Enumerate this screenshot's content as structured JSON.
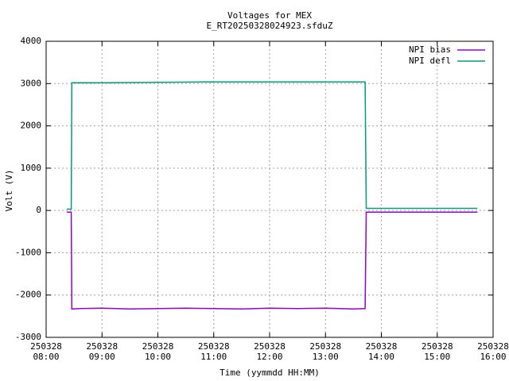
{
  "chart_data": {
    "type": "line",
    "title": "Voltages for MEX",
    "subtitle": "E_RT20250328024923.sfduZ",
    "x_label": "Time (yymmdd HH:MM)",
    "y_label": "Volt (V)",
    "xlim": [
      8,
      16
    ],
    "xticks": [
      {
        "value": 8,
        "label": [
          "250328",
          "08:00"
        ]
      },
      {
        "value": 9,
        "label": [
          "250328",
          "09:00"
        ]
      },
      {
        "value": 10,
        "label": [
          "250328",
          "10:00"
        ]
      },
      {
        "value": 11,
        "label": [
          "250328",
          "11:00"
        ]
      },
      {
        "value": 12,
        "label": [
          "250328",
          "12:00"
        ]
      },
      {
        "value": 13,
        "label": [
          "250328",
          "13:00"
        ]
      },
      {
        "value": 14,
        "label": [
          "250328",
          "14:00"
        ]
      },
      {
        "value": 15,
        "label": [
          "250328",
          "15:00"
        ]
      },
      {
        "value": 16,
        "label": [
          "250328",
          "16:00"
        ]
      }
    ],
    "ylim": [
      -3000,
      4000
    ],
    "yticks": [
      -3000,
      -2000,
      -1000,
      0,
      1000,
      2000,
      3000,
      4000
    ],
    "grid": true,
    "legend": "top-right",
    "series": [
      {
        "name": "NPI bias",
        "color": "#9400d3",
        "x": [
          8.37,
          8.45,
          8.46,
          8.6,
          9,
          9.5,
          10,
          10.5,
          11,
          11.5,
          12,
          12.5,
          13,
          13.5,
          13.71,
          13.73,
          15.72
        ],
        "values": [
          -40,
          -40,
          -2330,
          -2320,
          -2310,
          -2330,
          -2320,
          -2310,
          -2320,
          -2330,
          -2310,
          -2320,
          -2310,
          -2330,
          -2320,
          -40,
          -40
        ]
      },
      {
        "name": "NPI defl",
        "color": "#009e73",
        "x": [
          8.37,
          8.45,
          8.46,
          9,
          10,
          11,
          12,
          13,
          13.71,
          13.73,
          15.72
        ],
        "values": [
          30,
          30,
          3020,
          3020,
          3030,
          3040,
          3040,
          3040,
          3040,
          50,
          50
        ]
      }
    ]
  }
}
